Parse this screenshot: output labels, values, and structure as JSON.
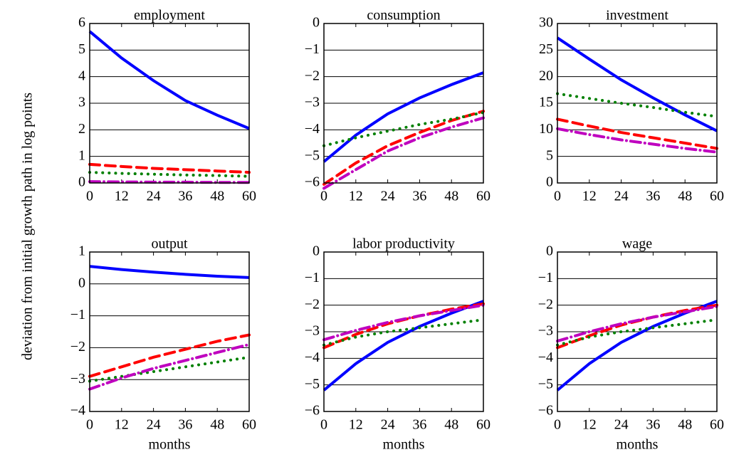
{
  "ylabel": "deviation from initial growth path in log points",
  "chart_data": [
    {
      "type": "line",
      "title": "employment",
      "x": [
        0,
        12,
        24,
        36,
        48,
        60
      ],
      "xlim": [
        0,
        60
      ],
      "xticks": [
        0,
        12,
        24,
        36,
        48,
        60
      ],
      "ylim": [
        0,
        6
      ],
      "yticks": [
        0,
        1,
        2,
        3,
        4,
        5,
        6
      ],
      "grid": true,
      "series": [
        {
          "color": "#0000ff",
          "style": "solid",
          "values": [
            5.7,
            4.7,
            3.85,
            3.1,
            2.55,
            2.05
          ]
        },
        {
          "color": "#ff0000",
          "style": "dashed",
          "values": [
            0.7,
            0.62,
            0.55,
            0.5,
            0.45,
            0.4
          ]
        },
        {
          "color": "#008000",
          "style": "dotted",
          "values": [
            0.4,
            0.36,
            0.33,
            0.3,
            0.28,
            0.25
          ]
        },
        {
          "color": "#bf00bf",
          "style": "dashdot",
          "values": [
            0.05,
            0.04,
            0.03,
            0.03,
            0.02,
            0.02
          ]
        }
      ]
    },
    {
      "type": "line",
      "title": "consumption",
      "x": [
        0,
        12,
        24,
        36,
        48,
        60
      ],
      "xlim": [
        0,
        60
      ],
      "xticks": [
        0,
        12,
        24,
        36,
        48,
        60
      ],
      "ylim": [
        -6,
        0
      ],
      "yticks": [
        {
          "value": -6,
          "label": "−6"
        },
        {
          "value": -5,
          "label": "−5"
        },
        {
          "value": -4,
          "label": "−4"
        },
        {
          "value": -3,
          "label": "−3"
        },
        {
          "value": -2,
          "label": "−2"
        },
        {
          "value": -1,
          "label": "−1"
        },
        0
      ],
      "grid": true,
      "series": [
        {
          "color": "#0000ff",
          "style": "solid",
          "values": [
            -5.2,
            -4.2,
            -3.4,
            -2.8,
            -2.3,
            -1.85
          ]
        },
        {
          "color": "#ff0000",
          "style": "dashed",
          "values": [
            -6.05,
            -5.25,
            -4.6,
            -4.1,
            -3.65,
            -3.3
          ]
        },
        {
          "color": "#008000",
          "style": "dotted",
          "values": [
            -4.6,
            -4.3,
            -4.05,
            -3.8,
            -3.6,
            -3.35
          ]
        },
        {
          "color": "#bf00bf",
          "style": "dashdot",
          "values": [
            -6.2,
            -5.5,
            -4.8,
            -4.3,
            -3.9,
            -3.55
          ]
        }
      ]
    },
    {
      "type": "line",
      "title": "investment",
      "x": [
        0,
        12,
        24,
        36,
        48,
        60
      ],
      "xlim": [
        0,
        60
      ],
      "xticks": [
        0,
        12,
        24,
        36,
        48,
        60
      ],
      "ylim": [
        0,
        30
      ],
      "yticks": [
        0,
        5,
        10,
        15,
        20,
        25,
        30
      ],
      "grid": true,
      "series": [
        {
          "color": "#0000ff",
          "style": "solid",
          "values": [
            27.3,
            23.3,
            19.4,
            16,
            12.8,
            9.8
          ]
        },
        {
          "color": "#ff0000",
          "style": "dashed",
          "values": [
            12,
            10.7,
            9.5,
            8.5,
            7.5,
            6.5
          ]
        },
        {
          "color": "#008000",
          "style": "dotted",
          "values": [
            16.8,
            15.9,
            15,
            14.2,
            13.3,
            12.5
          ]
        },
        {
          "color": "#bf00bf",
          "style": "dashdot",
          "values": [
            10.2,
            9.1,
            8.1,
            7.3,
            6.5,
            5.8
          ]
        }
      ]
    },
    {
      "type": "line",
      "title": "output",
      "xlabel": "months",
      "x": [
        0,
        12,
        24,
        36,
        48,
        60
      ],
      "xlim": [
        0,
        60
      ],
      "xticks": [
        0,
        12,
        24,
        36,
        48,
        60
      ],
      "ylim": [
        -4,
        1
      ],
      "yticks": [
        {
          "value": -4,
          "label": "−4"
        },
        {
          "value": -3,
          "label": "−3"
        },
        {
          "value": -2,
          "label": "−2"
        },
        {
          "value": -1,
          "label": "−1"
        },
        0,
        1
      ],
      "grid": true,
      "series": [
        {
          "color": "#0000ff",
          "style": "solid",
          "values": [
            0.55,
            0.45,
            0.37,
            0.3,
            0.24,
            0.2
          ]
        },
        {
          "color": "#ff0000",
          "style": "dashed",
          "values": [
            -2.9,
            -2.6,
            -2.3,
            -2.05,
            -1.8,
            -1.6
          ]
        },
        {
          "color": "#008000",
          "style": "dotted",
          "values": [
            -3.05,
            -2.9,
            -2.75,
            -2.6,
            -2.45,
            -2.3
          ]
        },
        {
          "color": "#bf00bf",
          "style": "dashdot",
          "values": [
            -3.3,
            -2.95,
            -2.65,
            -2.4,
            -2.15,
            -1.9
          ]
        }
      ]
    },
    {
      "type": "line",
      "title": "labor productivity",
      "xlabel": "months",
      "x": [
        0,
        12,
        24,
        36,
        48,
        60
      ],
      "xlim": [
        0,
        60
      ],
      "xticks": [
        0,
        12,
        24,
        36,
        48,
        60
      ],
      "ylim": [
        -6,
        0
      ],
      "yticks": [
        {
          "value": -6,
          "label": "−6"
        },
        {
          "value": -5,
          "label": "−5"
        },
        {
          "value": -4,
          "label": "−4"
        },
        {
          "value": -3,
          "label": "−3"
        },
        {
          "value": -2,
          "label": "−2"
        },
        {
          "value": -1,
          "label": "−1"
        },
        0
      ],
      "grid": true,
      "series": [
        {
          "color": "#0000ff",
          "style": "solid",
          "values": [
            -5.2,
            -4.2,
            -3.4,
            -2.8,
            -2.3,
            -1.85
          ]
        },
        {
          "color": "#ff0000",
          "style": "dashed",
          "values": [
            -3.6,
            -3.1,
            -2.7,
            -2.4,
            -2.15,
            -1.95
          ]
        },
        {
          "color": "#008000",
          "style": "dotted",
          "values": [
            -3.5,
            -3.2,
            -3.0,
            -2.85,
            -2.7,
            -2.55
          ]
        },
        {
          "color": "#bf00bf",
          "style": "dashdot",
          "values": [
            -3.3,
            -2.95,
            -2.65,
            -2.4,
            -2.2,
            -2.0
          ]
        }
      ]
    },
    {
      "type": "line",
      "title": "wage",
      "xlabel": "months",
      "x": [
        0,
        12,
        24,
        36,
        48,
        60
      ],
      "xlim": [
        0,
        60
      ],
      "xticks": [
        0,
        12,
        24,
        36,
        48,
        60
      ],
      "ylim": [
        -6,
        0
      ],
      "yticks": [
        {
          "value": -6,
          "label": "−6"
        },
        {
          "value": -5,
          "label": "−5"
        },
        {
          "value": -4,
          "label": "−4"
        },
        {
          "value": -3,
          "label": "−3"
        },
        {
          "value": -2,
          "label": "−2"
        },
        {
          "value": -1,
          "label": "−1"
        },
        0
      ],
      "grid": true,
      "series": [
        {
          "color": "#0000ff",
          "style": "solid",
          "values": [
            -5.2,
            -4.2,
            -3.4,
            -2.8,
            -2.3,
            -1.85
          ]
        },
        {
          "color": "#ff0000",
          "style": "dashed",
          "values": [
            -3.6,
            -3.15,
            -2.75,
            -2.45,
            -2.2,
            -2.0
          ]
        },
        {
          "color": "#008000",
          "style": "dotted",
          "values": [
            -3.5,
            -3.2,
            -3.0,
            -2.85,
            -2.7,
            -2.55
          ]
        },
        {
          "color": "#bf00bf",
          "style": "dashdot",
          "values": [
            -3.35,
            -3.0,
            -2.7,
            -2.45,
            -2.25,
            -2.05
          ]
        }
      ]
    }
  ]
}
